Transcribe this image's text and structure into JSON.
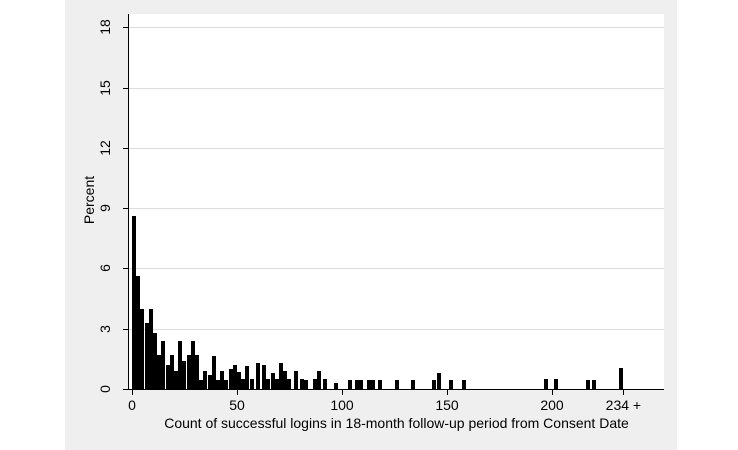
{
  "axes": {
    "y_title": "Percent",
    "x_title": "Count of successful logins in 18-month follow-up period from Consent Date"
  },
  "colors": {
    "figure_background": "#efefef",
    "plot_background": "#ffffff",
    "gridline": "#dcdcdc",
    "bar": "#000000",
    "axis": "#000000"
  },
  "chart_data": {
    "type": "bar",
    "subtype": "histogram",
    "title": "",
    "xlabel": "Count of successful logins in 18-month follow-up period from Consent Date",
    "ylabel": "Percent",
    "grid": true,
    "legend": "none",
    "ylim": [
      0,
      18.66
    ],
    "xlim": [
      -1.5,
      253
    ],
    "bin_width": 2,
    "y_ticks": [
      0,
      3,
      6,
      9,
      12,
      15,
      18
    ],
    "y_tick_labels": [
      "0",
      "3",
      "6",
      "9",
      "12",
      "15",
      "18"
    ],
    "x_ticks": [
      {
        "value": 0,
        "label": "0"
      },
      {
        "value": 50,
        "label": "50"
      },
      {
        "value": 100,
        "label": "100"
      },
      {
        "value": 150,
        "label": "150"
      },
      {
        "value": 200,
        "label": "200"
      },
      {
        "value": 234,
        "label": "234 +"
      }
    ],
    "bins": [
      [
        0,
        8.6
      ],
      [
        2,
        5.6
      ],
      [
        4,
        4.0
      ],
      [
        6,
        3.3
      ],
      [
        8,
        4.0
      ],
      [
        10,
        2.8
      ],
      [
        12,
        1.7
      ],
      [
        14,
        2.4
      ],
      [
        16,
        1.2
      ],
      [
        18,
        1.7
      ],
      [
        20,
        0.9
      ],
      [
        22,
        2.4
      ],
      [
        24,
        1.4
      ],
      [
        26,
        1.7
      ],
      [
        28,
        2.4
      ],
      [
        30,
        1.7
      ],
      [
        32,
        0.45
      ],
      [
        34,
        0.9
      ],
      [
        36,
        0.7
      ],
      [
        38,
        1.65
      ],
      [
        40,
        0.45
      ],
      [
        42,
        0.9
      ],
      [
        44,
        0.45
      ],
      [
        46,
        1.0
      ],
      [
        48,
        1.2
      ],
      [
        50,
        0.85
      ],
      [
        52,
        0.5
      ],
      [
        54,
        1.15
      ],
      [
        56,
        0.5
      ],
      [
        59,
        1.3
      ],
      [
        62,
        1.2
      ],
      [
        64,
        0.5
      ],
      [
        66,
        0.8
      ],
      [
        68,
        0.5
      ],
      [
        70,
        1.3
      ],
      [
        72,
        0.9
      ],
      [
        74,
        0.5
      ],
      [
        77,
        0.9
      ],
      [
        80,
        0.5
      ],
      [
        82,
        0.45
      ],
      [
        86,
        0.5
      ],
      [
        88,
        0.9
      ],
      [
        91,
        0.5
      ],
      [
        96,
        0.3
      ],
      [
        103,
        0.45
      ],
      [
        106,
        0.45
      ],
      [
        108,
        0.45
      ],
      [
        112,
        0.45
      ],
      [
        114,
        0.45
      ],
      [
        117,
        0.45
      ],
      [
        125,
        0.45
      ],
      [
        133,
        0.45
      ],
      [
        143,
        0.45
      ],
      [
        145,
        0.8
      ],
      [
        151,
        0.45
      ],
      [
        157,
        0.45
      ],
      [
        196,
        0.5
      ],
      [
        201,
        0.5
      ],
      [
        216,
        0.45
      ],
      [
        219,
        0.45
      ],
      [
        232,
        1.05
      ]
    ]
  }
}
